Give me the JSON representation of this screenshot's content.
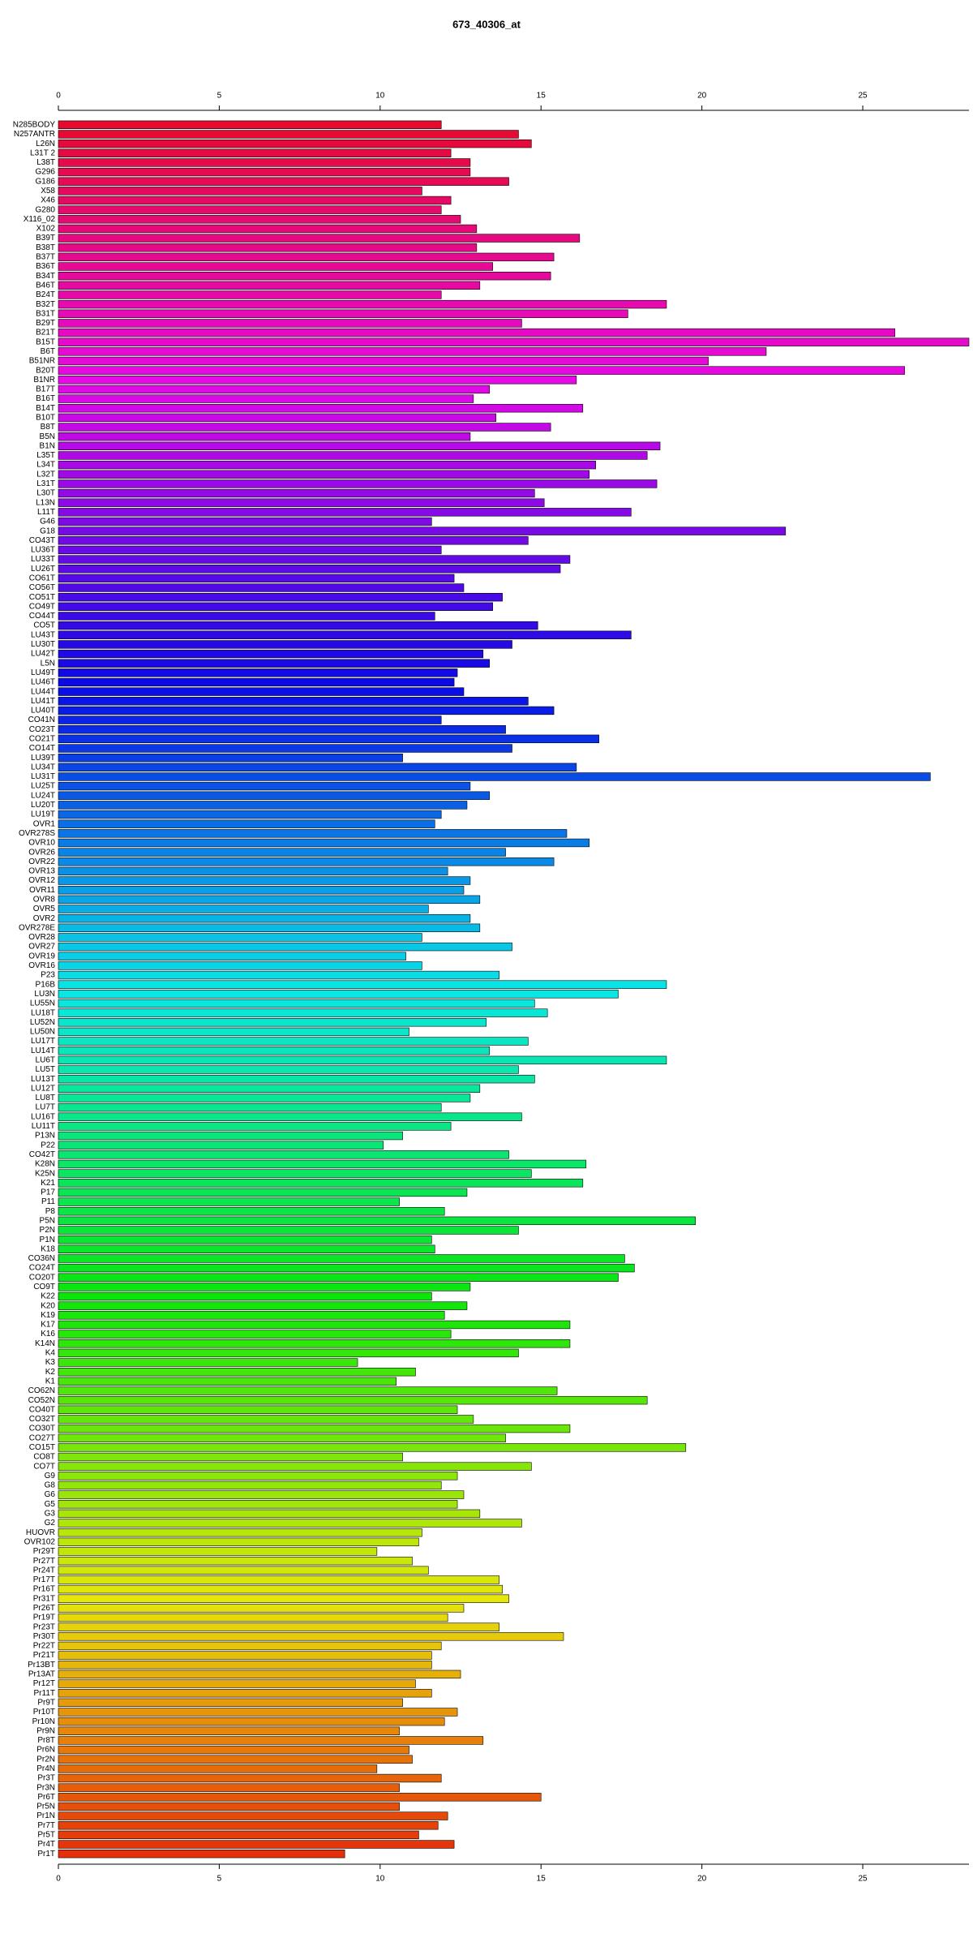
{
  "chart_data": {
    "type": "barh",
    "title": "673_40306_at",
    "categories": [
      "N285BODY",
      "N257ANTR",
      "L26N",
      "L31T 2",
      "L38T",
      "G296",
      "G186",
      "X58",
      "X46",
      "G280",
      "X116_02",
      "X102",
      "B39T",
      "B38T",
      "B37T",
      "B36T",
      "B34T",
      "B46T",
      "B24T",
      "B32T",
      "B31T",
      "B29T",
      "B21T",
      "B15T",
      "B6T",
      "B51NR",
      "B20T",
      "B1NR",
      "B17T",
      "B16T",
      "B14T",
      "B10T",
      "B8T",
      "B5N",
      "B1N",
      "L35T",
      "L34T",
      "L32T",
      "L31T",
      "L30T",
      "L13N",
      "L11T",
      "G46",
      "G18",
      "CO43T",
      "LU36T",
      "LU33T",
      "LU26T",
      "CO61T",
      "CO56T",
      "CO51T",
      "CO49T",
      "CO44T",
      "CO5T",
      "LU43T",
      "LU30T",
      "LU42T",
      "L5N",
      "LU49T",
      "LU46T",
      "LU44T",
      "LU41T",
      "LU40T",
      "CO41N",
      "CO23T",
      "CO21T",
      "CO14T",
      "LU39T",
      "LU34T",
      "LU31T",
      "LU25T",
      "LU24T",
      "LU20T",
      "LU19T",
      "OVR1",
      "OVR278S",
      "OVR10",
      "OVR26",
      "OVR22",
      "OVR13",
      "OVR12",
      "OVR11",
      "OVR8",
      "OVR5",
      "OVR2",
      "OVR278E",
      "OVR28",
      "OVR27",
      "OVR19",
      "OVR16",
      "P23",
      "P16B",
      "LU3N",
      "LU55N",
      "LU18T",
      "LU52N",
      "LU50N",
      "LU17T",
      "LU14T",
      "LU6T",
      "LU5T",
      "LU13T",
      "LU12T",
      "LU8T",
      "LU7T",
      "LU16T",
      "LU11T",
      "P13N",
      "P22",
      "CO42T",
      "K28N",
      "K25N",
      "K21",
      "P17",
      "P11",
      "P8",
      "P5N",
      "P2N",
      "P1N",
      "K18",
      "CO36N",
      "CO24T",
      "CO20T",
      "CO9T",
      "K22",
      "K20",
      "K19",
      "K17",
      "K16",
      "K14N",
      "K4",
      "K3",
      "K2",
      "K1",
      "CO62N",
      "CO52N",
      "CO40T",
      "CO32T",
      "CO30T",
      "CO27T",
      "CO15T",
      "CO8T",
      "CO7T",
      "G9",
      "G8",
      "G6",
      "G5",
      "G3",
      "G2",
      "HUOVR",
      "OVR102",
      "Pr29T",
      "Pr27T",
      "Pr24T",
      "Pr17T",
      "Pr16T",
      "Pr31T",
      "Pr26T",
      "Pr19T",
      "Pr23T",
      "Pr30T",
      "Pr22T",
      "Pr21T",
      "Pr13BT",
      "Pr13AT",
      "Pr12T",
      "Pr11T",
      "Pr9T",
      "Pr10T",
      "Pr10N",
      "Pr9N",
      "Pr8T",
      "Pr6N",
      "Pr2N",
      "Pr4N",
      "Pr3T",
      "Pr3N",
      "Pr6T",
      "Pr5N",
      "Pr1N",
      "Pr7T",
      "Pr5T",
      "Pr4T",
      "Pr1T"
    ],
    "values": [
      11.9,
      14.3,
      14.7,
      12.2,
      12.8,
      12.8,
      14.0,
      11.3,
      12.2,
      11.9,
      12.5,
      13.0,
      16.2,
      13.0,
      15.4,
      13.5,
      15.3,
      13.1,
      11.9,
      18.9,
      17.7,
      14.4,
      26.0,
      28.3,
      22.0,
      20.2,
      26.3,
      16.1,
      13.4,
      12.9,
      16.3,
      13.6,
      15.3,
      12.8,
      18.7,
      18.3,
      16.7,
      16.5,
      18.6,
      14.8,
      15.1,
      17.8,
      11.6,
      22.6,
      14.6,
      11.9,
      15.9,
      15.6,
      12.3,
      12.6,
      13.8,
      13.5,
      11.7,
      14.9,
      17.8,
      14.1,
      13.2,
      13.4,
      12.4,
      12.3,
      12.6,
      14.6,
      15.4,
      11.9,
      13.9,
      16.8,
      14.1,
      10.7,
      16.1,
      27.1,
      12.8,
      13.4,
      12.7,
      11.9,
      11.7,
      15.8,
      16.5,
      13.9,
      15.4,
      12.1,
      12.8,
      12.6,
      13.1,
      11.5,
      12.8,
      13.1,
      11.3,
      14.1,
      10.8,
      11.3,
      13.7,
      18.9,
      17.4,
      14.8,
      15.2,
      13.3,
      10.9,
      14.6,
      13.4,
      18.9,
      14.3,
      14.8,
      13.1,
      12.8,
      11.9,
      14.4,
      12.2,
      10.7,
      10.1,
      14.0,
      16.4,
      14.7,
      16.3,
      12.7,
      10.6,
      12.0,
      19.8,
      14.3,
      11.6,
      11.7,
      17.6,
      17.9,
      17.4,
      12.8,
      11.6,
      12.7,
      12.0,
      15.9,
      12.2,
      15.9,
      14.3,
      9.3,
      11.1,
      10.5,
      15.5,
      18.3,
      12.4,
      12.9,
      15.9,
      13.9,
      19.5,
      10.7,
      14.7,
      12.4,
      11.9,
      12.6,
      12.4,
      13.1,
      14.4,
      11.3,
      11.2,
      9.9,
      11.0,
      11.5,
      13.7,
      13.8,
      14.0,
      12.6,
      12.1,
      13.7,
      15.7,
      11.9,
      11.6,
      11.6,
      12.5,
      11.1,
      11.6,
      10.7,
      12.4,
      12.0,
      10.6,
      13.2,
      10.9,
      11.0,
      9.9,
      11.9,
      10.6,
      15.0,
      10.6,
      12.1,
      11.8,
      11.2,
      12.3,
      8.9
    ],
    "color_map": "rainbow",
    "hue_range": [
      350,
      10
    ],
    "xlim": [
      0,
      28.3
    ],
    "xticks": [
      0,
      5,
      10,
      15,
      20,
      25
    ]
  }
}
